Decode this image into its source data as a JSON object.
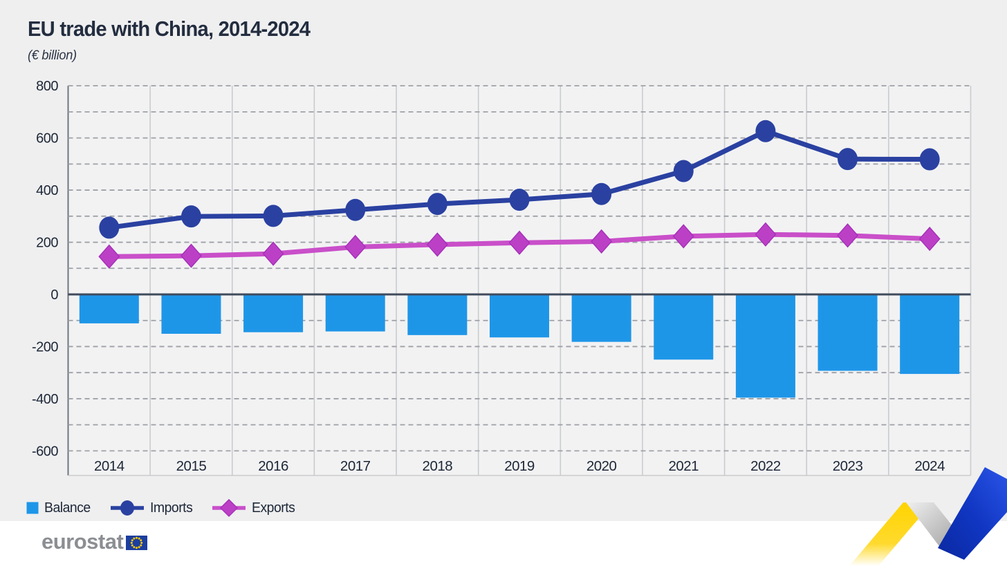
{
  "header": {
    "title": "EU trade with China, 2014-2024",
    "subtitle": "(€ billion)"
  },
  "chart_data": {
    "type": "bar",
    "subtype": "combo-bar-and-lines",
    "title": "EU trade with China, 2014-2024",
    "unit": "€ billion",
    "categories": [
      "2014",
      "2015",
      "2016",
      "2017",
      "2018",
      "2019",
      "2020",
      "2021",
      "2022",
      "2023",
      "2024"
    ],
    "series": [
      {
        "name": "Balance",
        "type": "bar",
        "color": "#1e96e8",
        "values": [
          -111,
          -151,
          -145,
          -142,
          -156,
          -165,
          -182,
          -250,
          -396,
          -293,
          -305
        ]
      },
      {
        "name": "Imports",
        "type": "line",
        "marker": "circle",
        "color": "#2a41a1",
        "line_color": "#2a41a1",
        "values": [
          256,
          299,
          301,
          324,
          347,
          363,
          385,
          473,
          626,
          519,
          518
        ]
      },
      {
        "name": "Exports",
        "type": "line",
        "marker": "diamond",
        "color": "#bc40c6",
        "line_color": "#c94fc9",
        "marker_edge": "#a531b8",
        "values": [
          145,
          148,
          156,
          182,
          191,
          198,
          203,
          223,
          230,
          226,
          213
        ]
      }
    ],
    "yaxis": {
      "min": -600,
      "max": 800,
      "grid_step": 100,
      "label_step": 200
    },
    "xlabel": "",
    "ylabel": "",
    "grid": true,
    "gridline_style": "dashed horizontal, solid vertical",
    "legend_position": "bottom-left",
    "colors": {
      "background": "#efeff0",
      "plot_background": "#f2f2f3",
      "text": "#1d2737",
      "dashed_grid": "#9da0a6",
      "vertical_grid": "#c9cbce",
      "zero_line": "#3f4b5c",
      "axis_line": "#70757d"
    }
  },
  "legend": {
    "items": [
      {
        "label": "Balance"
      },
      {
        "label": "Imports"
      },
      {
        "label": "Exports"
      }
    ]
  },
  "footer": {
    "logo_text": "eurostat"
  }
}
